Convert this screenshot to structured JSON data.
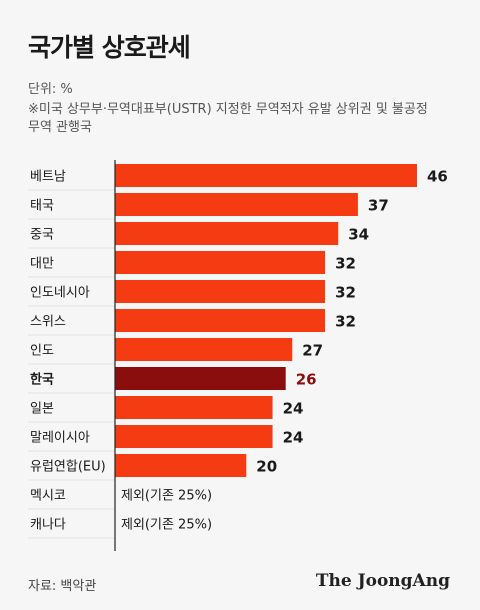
{
  "title": "국가별 상호관세",
  "unit_label": "단위: %",
  "note": "※미국 상무부·무역대표부(USTR) 지정한 무역적자 유발 상위권 및 불공정 무역 관행국",
  "source": "자료: 백악관",
  "brand": "The JoongAng",
  "colors": {
    "bar": "#f53b12",
    "highlight_bar": "#8b0e0e",
    "highlight_text": "#8b0e0e"
  },
  "chart_data": {
    "type": "bar",
    "orientation": "horizontal",
    "categories": [
      "베트남",
      "태국",
      "중국",
      "대만",
      "인도네시아",
      "스위스",
      "인도",
      "한국",
      "일본",
      "말레이시아",
      "유럽연합(EU)",
      "멕시코",
      "캐나다"
    ],
    "values": [
      46,
      37,
      34,
      32,
      32,
      32,
      27,
      26,
      24,
      24,
      20,
      null,
      null
    ],
    "value_labels": [
      "46",
      "37",
      "34",
      "32",
      "32",
      "32",
      "27",
      "26",
      "24",
      "24",
      "20",
      "제외(기존 25%)",
      "제외(기존 25%)"
    ],
    "highlight": "한국",
    "xlim": [
      0,
      46
    ]
  }
}
